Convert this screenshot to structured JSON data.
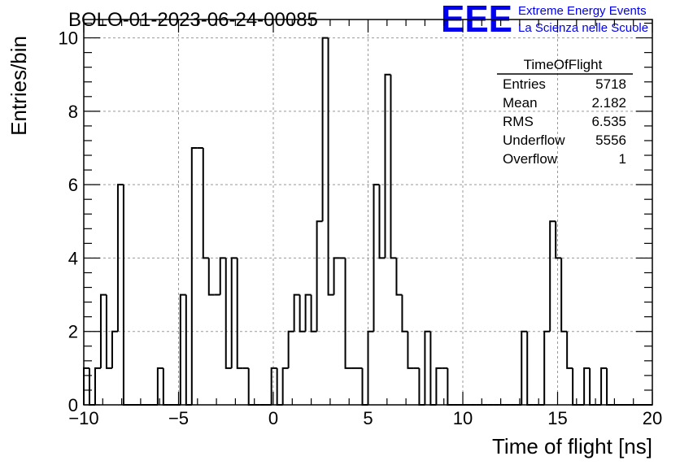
{
  "header": {
    "run_label": "BOLO-01-2023-06-24-00085",
    "logo_text": "EEE",
    "logo_line1": "Extreme Energy Events",
    "logo_line2": "La Scienza nelle Scuole"
  },
  "stats": {
    "title": "TimeOfFlight",
    "rows": [
      {
        "label": "Entries",
        "value": "5718"
      },
      {
        "label": "Mean",
        "value": "2.182"
      },
      {
        "label": "RMS",
        "value": "6.535"
      },
      {
        "label": "Underflow",
        "value": "5556"
      },
      {
        "label": "Overflow",
        "value": "1"
      }
    ]
  },
  "colors": {
    "histogram": "#000000",
    "grid": "#999999",
    "logo": "#0000ee"
  },
  "chart_data": {
    "type": "bar",
    "histogram_style": "step",
    "xlabel": "Time of flight [ns]",
    "ylabel": "Entries/bin",
    "xlim": [
      -10,
      20
    ],
    "ylim": [
      0,
      10.5
    ],
    "grid": true,
    "bin_width": 0.3,
    "x_ticks": [
      -10,
      -5,
      0,
      5,
      10,
      15,
      20
    ],
    "y_ticks": [
      0,
      2,
      4,
      6,
      8,
      10
    ],
    "bin_low_edges": [
      -10.0,
      -9.7,
      -9.4,
      -9.1,
      -8.8,
      -8.5,
      -8.2,
      -7.9,
      -7.6,
      -7.3,
      -7.0,
      -6.7,
      -6.4,
      -6.1,
      -5.8,
      -5.5,
      -5.2,
      -4.9,
      -4.6,
      -4.3,
      -4.0,
      -3.7,
      -3.4,
      -3.1,
      -2.8,
      -2.5,
      -2.2,
      -1.9,
      -1.6,
      -1.3,
      -1.0,
      -0.7,
      -0.4,
      -0.1,
      0.2,
      0.5,
      0.8,
      1.1,
      1.4,
      1.7,
      2.0,
      2.3,
      2.6,
      2.9,
      3.2,
      3.5,
      3.8,
      4.1,
      4.4,
      4.7,
      5.0,
      5.3,
      5.6,
      5.9,
      6.2,
      6.5,
      6.8,
      7.1,
      7.4,
      7.7,
      8.0,
      8.3,
      8.6,
      8.9,
      9.2,
      9.5,
      9.8,
      10.1,
      10.4,
      10.7,
      11.0,
      11.3,
      11.6,
      11.9,
      12.2,
      12.5,
      12.8,
      13.1,
      13.4,
      13.7,
      14.0,
      14.3,
      14.6,
      14.9,
      15.2,
      15.5,
      15.8,
      16.1,
      16.4,
      16.7,
      17.0,
      17.3,
      17.6,
      17.9,
      18.2,
      18.5,
      18.8,
      19.1,
      19.4,
      19.7
    ],
    "counts": [
      1,
      0,
      1,
      3,
      1,
      2,
      6,
      0,
      0,
      0,
      0,
      0,
      0,
      1,
      0,
      0,
      0,
      3,
      0,
      7,
      7,
      4,
      3,
      3,
      4,
      1,
      4,
      1,
      1,
      0,
      0,
      0,
      0,
      1,
      0,
      1,
      2,
      3,
      2,
      3,
      2,
      5,
      10,
      3,
      4,
      4,
      1,
      1,
      1,
      0,
      2,
      6,
      4,
      9,
      4,
      3,
      2,
      1,
      1,
      0,
      2,
      0,
      1,
      1,
      0,
      0,
      0,
      0,
      0,
      0,
      0,
      0,
      0,
      0,
      0,
      0,
      0,
      2,
      0,
      0,
      0,
      2,
      5,
      4,
      2,
      1,
      0,
      0,
      1,
      0,
      0,
      1,
      0,
      0,
      0,
      0,
      0,
      0,
      0,
      0
    ]
  }
}
